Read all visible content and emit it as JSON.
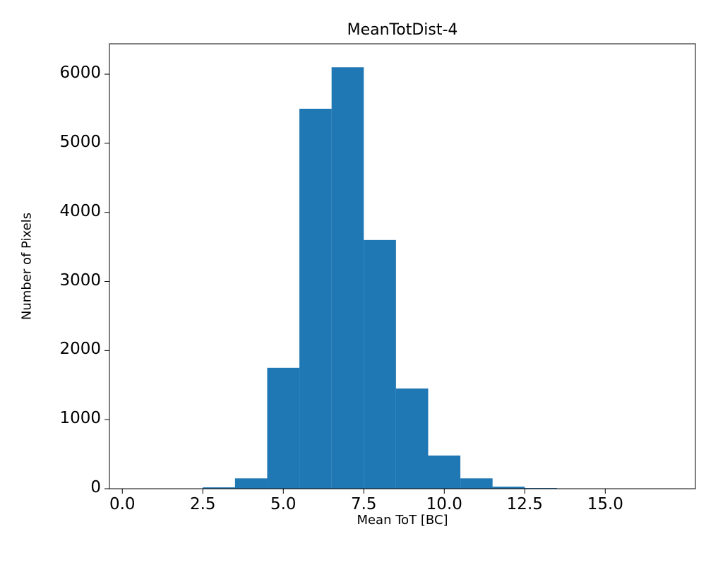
{
  "chart_data": {
    "type": "bar",
    "title": "MeanTotDist-4",
    "xlabel": "Mean ToT [BC]",
    "ylabel": "Number of Pixels",
    "bin_edges": [
      2.5,
      3.5,
      4.5,
      5.5,
      6.5,
      7.5,
      8.5,
      9.5,
      10.5,
      11.5,
      12.5,
      13.5
    ],
    "counts": [
      20,
      150,
      1750,
      5500,
      6100,
      3600,
      1450,
      480,
      150,
      30,
      10
    ],
    "bar_color": "#1f77b4",
    "axis_color": "#000000",
    "xlim": [
      -0.4,
      17.8
    ],
    "ylim": [
      0,
      6440
    ],
    "x_tick_labels": [
      "0.0",
      "2.5",
      "5.0",
      "7.5",
      "10.0",
      "12.5",
      "15.0"
    ],
    "x_tick_values": [
      0,
      2.5,
      5,
      7.5,
      10,
      12.5,
      15
    ],
    "y_tick_labels": [
      "0",
      "1000",
      "2000",
      "3000",
      "4000",
      "5000",
      "6000"
    ],
    "y_tick_values": [
      0,
      1000,
      2000,
      3000,
      4000,
      5000,
      6000
    ],
    "grid": false
  }
}
